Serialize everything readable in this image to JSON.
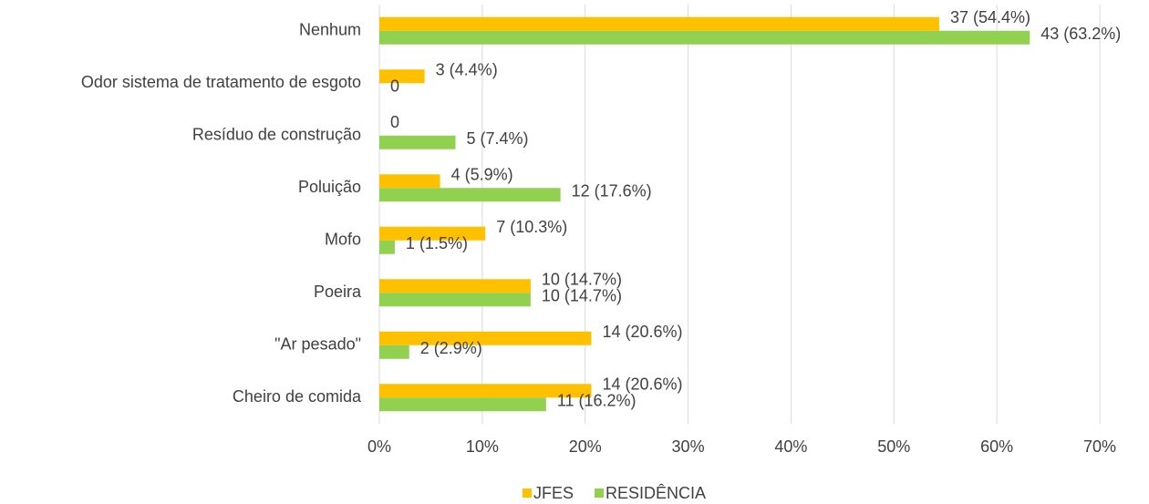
{
  "chart_data": {
    "type": "bar",
    "orientation": "horizontal",
    "categories": [
      "Nenhum",
      "Odor sistema de tratamento de esgoto",
      "Resíduo de construção",
      "Poluição",
      "Mofo",
      "Poeira",
      "\"Ar pesado\"",
      "Cheiro de comida"
    ],
    "series": [
      {
        "name": "JFES",
        "color": "#ffc000",
        "values": [
          54.4,
          4.4,
          0,
          5.9,
          10.3,
          14.7,
          20.6,
          20.6
        ],
        "value_labels": [
          "37 (54.4%)",
          "3 (4.4%)",
          "0",
          "4 (5.9%)",
          "7 (10.3%)",
          "10 (14.7%)",
          "14 (20.6%)",
          "14 (20.6%)"
        ]
      },
      {
        "name": "RESIDÊNCIA",
        "color": "#92d050",
        "values": [
          63.2,
          0,
          7.4,
          17.6,
          1.5,
          14.7,
          2.9,
          16.2
        ],
        "value_labels": [
          "43 (63.2%)",
          "0",
          "5 (7.4%)",
          "12 (17.6%)",
          "1 (1.5%)",
          "10 (14.7%)",
          "2 (2.9%)",
          "11 (16.2%)"
        ]
      }
    ],
    "xlim": [
      0,
      70
    ],
    "xticks": [
      {
        "value": 0,
        "label": "0%"
      },
      {
        "value": 10,
        "label": "10%"
      },
      {
        "value": 20,
        "label": "20%"
      },
      {
        "value": 30,
        "label": "30%"
      },
      {
        "value": 40,
        "label": "40%"
      },
      {
        "value": 50,
        "label": "50%"
      },
      {
        "value": 60,
        "label": "60%"
      },
      {
        "value": 70,
        "label": "70%"
      }
    ],
    "grid": true,
    "legend": "bottom"
  }
}
